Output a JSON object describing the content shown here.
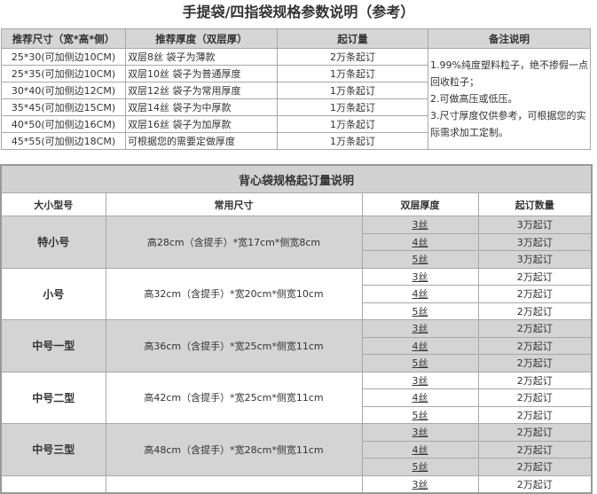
{
  "handbag_table": {
    "title": "手提袋/四指袋规格参数说明（参考）",
    "headers": [
      "推荐尺寸（宽*高*侧）",
      "推荐厚度（双层厚）",
      "起订量",
      "备注说明"
    ],
    "rows": [
      {
        "size": "25*30(可加侧边10CM)",
        "thickness": "双层8丝 袋子为薄款",
        "moq": "2万条起订"
      },
      {
        "size": "25*35(可加侧边10CM)",
        "thickness": "双层10丝 袋子为普通厚度",
        "moq": "1万条起订"
      },
      {
        "size": "30*40(可加侧边12CM)",
        "thickness": "双层12丝 袋子为常用厚度",
        "moq": "1万条起订"
      },
      {
        "size": "35*45(可加侧边15CM)",
        "thickness": "双层14丝 袋子为中厚款",
        "moq": "1万条起订"
      },
      {
        "size": "40*50(可加侧边16CM)",
        "thickness": "双层16丝 袋子为加厚款",
        "moq": "1万条起订"
      },
      {
        "size": "45*55(可加侧边18CM)",
        "thickness": "可根据您的需要定做厚度",
        "moq": "1万条起订"
      }
    ],
    "notes": [
      "1.99%纯度塑料粒子，绝不掺假一点回收粒子；",
      "2.可做高压或低压。",
      "3.尺寸厚度仅供参考，可根据您的实际需求加工定制。"
    ]
  },
  "vest_table": {
    "title": "背心袋规格起订量说明",
    "headers": [
      "大小型号",
      "常用尺寸",
      "双层厚度",
      "起订数量"
    ],
    "groups": [
      {
        "name": "特小号",
        "size": "高28cm（含提手）*宽17cm*侧宽8cm",
        "rows": [
          {
            "thickness": "3丝",
            "moq": "3万起订"
          },
          {
            "thickness": "4丝",
            "moq": "3万起订"
          },
          {
            "thickness": "5丝",
            "moq": "3万起订"
          }
        ]
      },
      {
        "name": "小号",
        "size": "高32cm（含提手）*宽20cm*侧宽10cm",
        "rows": [
          {
            "thickness": "3丝",
            "moq": "2万起订"
          },
          {
            "thickness": "4丝",
            "moq": "2万起订"
          },
          {
            "thickness": "5丝",
            "moq": "2万起订"
          }
        ]
      },
      {
        "name": "中号一型",
        "size": "高36cm（含提手）*宽25cm*侧宽11cm",
        "rows": [
          {
            "thickness": "3丝",
            "moq": "2万起订"
          },
          {
            "thickness": "4丝",
            "moq": "2万起订"
          },
          {
            "thickness": "5丝",
            "moq": "2万起订"
          }
        ]
      },
      {
        "name": "中号二型",
        "size": "高42cm（含提手）*宽25cm*侧宽11cm",
        "rows": [
          {
            "thickness": "3丝",
            "moq": "2万起订"
          },
          {
            "thickness": "4丝",
            "moq": "2万起订"
          },
          {
            "thickness": "5丝",
            "moq": "2万起订"
          }
        ]
      },
      {
        "name": "中号三型",
        "size": "高48cm（含提手）*宽28cm*侧宽11cm",
        "rows": [
          {
            "thickness": "3丝",
            "moq": "2万起订"
          },
          {
            "thickness": "4丝",
            "moq": "2万起订"
          },
          {
            "thickness": "5丝",
            "moq": "2万起订"
          }
        ]
      },
      {
        "name": "",
        "size": "",
        "rows": [
          {
            "thickness": "3丝",
            "moq": "2万起订"
          }
        ]
      }
    ]
  }
}
